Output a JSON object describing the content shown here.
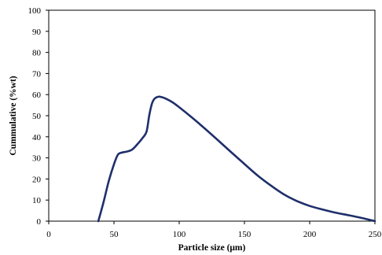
{
  "chart_data": {
    "type": "line",
    "title": "",
    "xlabel": "Particle size (μm)",
    "ylabel": "Cummulative (%wt)",
    "xlim": [
      0,
      250
    ],
    "ylim": [
      0,
      100
    ],
    "xticks": [
      0,
      50,
      100,
      150,
      200,
      250
    ],
    "yticks": [
      0,
      10,
      20,
      30,
      40,
      50,
      60,
      70,
      80,
      90,
      100
    ],
    "grid": false,
    "legend": "none",
    "series_color": "#1f2f6b",
    "series": [
      {
        "x": [
          38,
          42,
          46,
          50,
          53,
          56,
          60,
          64,
          68,
          72,
          75,
          77,
          79,
          81,
          84,
          87,
          90,
          95,
          100,
          110,
          120,
          130,
          140,
          150,
          160,
          170,
          180,
          190,
          200,
          210,
          220,
          230,
          240,
          250
        ],
        "y": [
          0,
          9,
          19,
          27,
          31.5,
          32.5,
          33,
          34,
          36.5,
          39.5,
          42.5,
          50,
          55.5,
          58,
          59,
          58.7,
          58,
          56.3,
          54,
          49,
          43.7,
          38.2,
          32.6,
          27.1,
          21.7,
          17,
          12.8,
          9.6,
          7.2,
          5.5,
          4,
          2.8,
          1.5,
          0
        ]
      }
    ]
  }
}
